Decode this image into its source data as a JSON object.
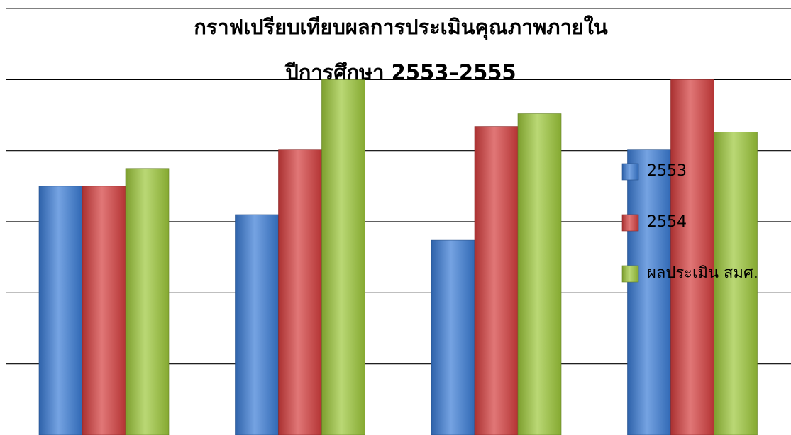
{
  "chart_data": {
    "type": "bar",
    "title": [
      "กราฟเปรียบเทียบผลการประเมินคุณภาพภายใน",
      "ปีการศึกษา 2553–2555"
    ],
    "categories": [
      null,
      null,
      null,
      null
    ],
    "series": [
      {
        "name": "2553",
        "color": "#3a7bd5",
        "values": [
          3.5,
          3.1,
          2.74,
          4.01
        ]
      },
      {
        "name": "2554",
        "color": "#d43d3d",
        "values": [
          3.5,
          4.01,
          4.34,
          5.0
        ]
      },
      {
        "name": "ผลประเมิน สมศ.",
        "color": "#9cc73a",
        "values": [
          3.75,
          5.0,
          4.52,
          4.26
        ]
      }
    ],
    "ylim": [
      0,
      6.12
    ],
    "yticks": [
      1,
      2,
      3,
      4,
      5,
      6
    ],
    "grid": true,
    "legend": "right"
  }
}
